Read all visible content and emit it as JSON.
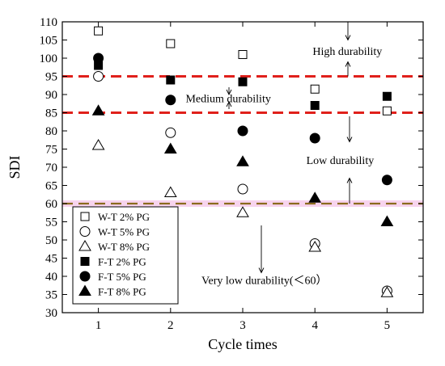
{
  "chart_data": {
    "type": "scatter",
    "xlabel": "Cycle times",
    "ylabel": "SDI",
    "xlim": [
      0.5,
      5.5
    ],
    "ylim": [
      30,
      110
    ],
    "x_ticks": [
      1,
      2,
      3,
      4,
      5
    ],
    "y_ticks": [
      30,
      35,
      40,
      45,
      50,
      55,
      60,
      65,
      70,
      75,
      80,
      85,
      90,
      95,
      100,
      105,
      110
    ],
    "grid": false,
    "legend_position": "bottom-left",
    "reference_lines": [
      {
        "y": 95,
        "color": "#e0201b",
        "style": "dashed"
      },
      {
        "y": 85,
        "color": "#e0201b",
        "style": "dashed"
      },
      {
        "y": 60,
        "color": "#8b6b1e",
        "style": "dashed",
        "highlight": "#f4c6e8"
      }
    ],
    "annotations": [
      {
        "text": "High durability",
        "x": 4.45,
        "y": 102
      },
      {
        "text": "Medium durability",
        "x": 2.8,
        "y": 89
      },
      {
        "text": "Low durability",
        "x": 4.35,
        "y": 72
      },
      {
        "text": "Very low durability(＜60）",
        "x": 3.3,
        "y": 39
      }
    ],
    "series": [
      {
        "name": "W-T 2% PG",
        "marker": "square-open",
        "x": [
          1,
          2,
          3,
          4,
          5
        ],
        "values": [
          107.5,
          104,
          101,
          91.5,
          85.5
        ]
      },
      {
        "name": "W-T 5% PG",
        "marker": "circle-open",
        "x": [
          1,
          2,
          3,
          4,
          5
        ],
        "values": [
          95,
          79.5,
          64,
          49,
          36
        ]
      },
      {
        "name": "W-T 8% PG",
        "marker": "triangle-open",
        "x": [
          1,
          2,
          3,
          4,
          5
        ],
        "values": [
          76,
          63,
          57.5,
          48,
          35.5
        ]
      },
      {
        "name": "F-T 2% PG",
        "marker": "square-filled",
        "x": [
          1,
          2,
          3,
          4,
          5
        ],
        "values": [
          98,
          94,
          93.5,
          87,
          89.5
        ]
      },
      {
        "name": "F-T 5% PG",
        "marker": "circle-filled",
        "x": [
          1,
          2,
          3,
          4,
          5
        ],
        "values": [
          100,
          88.5,
          80,
          78,
          66.5
        ]
      },
      {
        "name": "F-T 8% PG",
        "marker": "triangle-filled",
        "x": [
          1,
          2,
          3,
          4,
          5
        ],
        "values": [
          85.5,
          75,
          71.5,
          61.5,
          55
        ]
      }
    ]
  }
}
